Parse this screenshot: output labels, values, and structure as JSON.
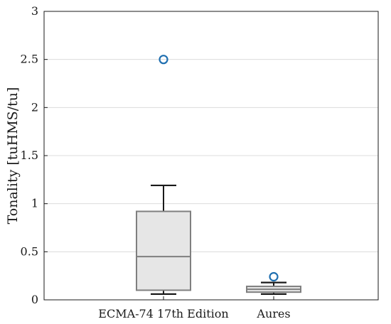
{
  "chart_data": {
    "type": "box",
    "title": "",
    "xlabel": "",
    "ylabel": "Tonality [tuHMS/tu]",
    "ylim": [
      0,
      3
    ],
    "yticks": [
      0,
      0.5,
      1,
      1.5,
      2,
      2.5,
      3
    ],
    "ytick_labels": [
      "0",
      "0.5",
      "1",
      "1.5",
      "2",
      "2.5",
      "3"
    ],
    "grid": "horizontal",
    "legend": "none",
    "categories": [
      "ECMA-74 17th Edition",
      "Aures"
    ],
    "boxes": [
      {
        "category": "ECMA-74 17th Edition",
        "whisker_low": 0.06,
        "q1": 0.1,
        "median": 0.45,
        "q3": 0.92,
        "whisker_high": 1.19,
        "outliers": [
          2.5
        ]
      },
      {
        "category": "Aures",
        "whisker_low": 0.06,
        "q1": 0.08,
        "median": 0.11,
        "q3": 0.14,
        "whisker_high": 0.18,
        "outliers": [
          0.24
        ]
      }
    ],
    "colors": {
      "box_fill": "#e6e6e6",
      "box_edge": "#7f7f7f",
      "median": "#7f7f7f",
      "whisker": "#1a1a1a",
      "outlier": "#1f6fb0",
      "grid": "#dcdcdc",
      "axis": "#1a1a1a"
    }
  }
}
